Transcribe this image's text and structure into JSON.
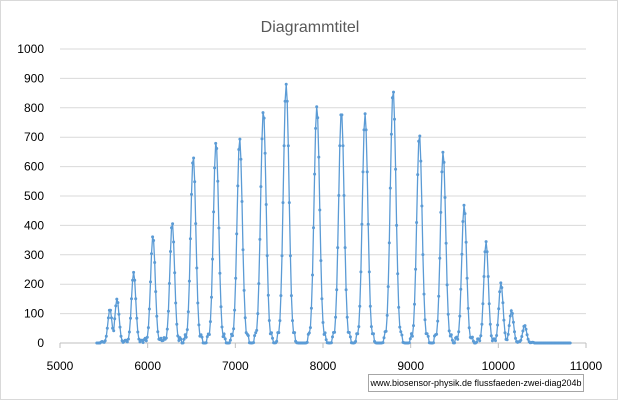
{
  "chart_data": {
    "type": "line",
    "title": "Diagrammtitel",
    "xlabel": "",
    "ylabel": "",
    "xlim": [
      5000,
      11000
    ],
    "ylim": [
      0,
      1000
    ],
    "x_ticks": [
      5000,
      6000,
      7000,
      8000,
      9000,
      10000,
      11000
    ],
    "y_ticks": [
      0,
      100,
      200,
      300,
      400,
      500,
      600,
      700,
      800,
      900,
      1000
    ],
    "grid": true,
    "legend": "none",
    "series": [
      {
        "color": "#5b9bd5",
        "peaks": [
          {
            "x": 5570,
            "y": 115
          },
          {
            "x": 5650,
            "y": 150
          },
          {
            "x": 5840,
            "y": 240
          },
          {
            "x": 6060,
            "y": 365
          },
          {
            "x": 6280,
            "y": 410
          },
          {
            "x": 6520,
            "y": 635
          },
          {
            "x": 6780,
            "y": 685
          },
          {
            "x": 7050,
            "y": 695
          },
          {
            "x": 7320,
            "y": 790
          },
          {
            "x": 7580,
            "y": 880
          },
          {
            "x": 7930,
            "y": 805
          },
          {
            "x": 8210,
            "y": 790
          },
          {
            "x": 8480,
            "y": 780
          },
          {
            "x": 8800,
            "y": 860
          },
          {
            "x": 9100,
            "y": 710
          },
          {
            "x": 9370,
            "y": 650
          },
          {
            "x": 9610,
            "y": 470
          },
          {
            "x": 9860,
            "y": 345
          },
          {
            "x": 10030,
            "y": 205
          },
          {
            "x": 10150,
            "y": 110
          },
          {
            "x": 10300,
            "y": 60
          }
        ],
        "baseline_x_range": [
          5420,
          10820
        ]
      }
    ]
  },
  "credit": "www.biosensor-physik.de  flussfaeden-zwei-diag204b"
}
